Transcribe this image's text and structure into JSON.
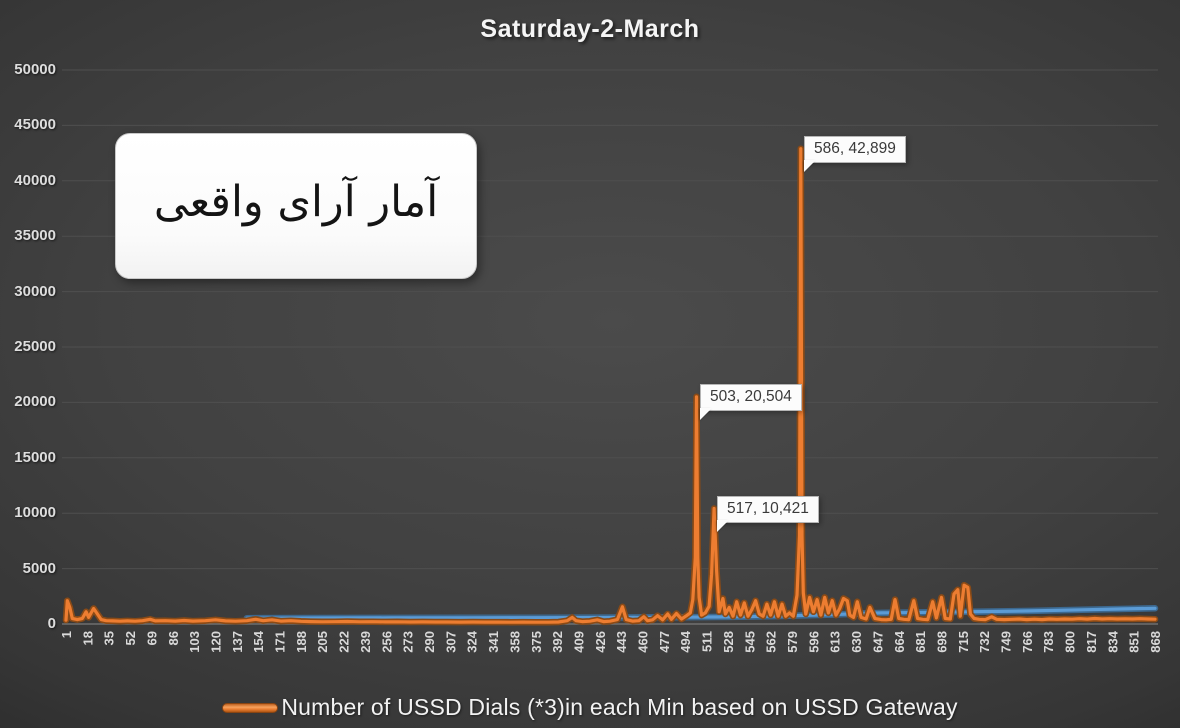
{
  "title": "Saturday-2-March",
  "annotation": {
    "text": "آمار آرای واقعی"
  },
  "legend": {
    "label": "Number of USSD Dials  (*3)in each Min based on USSD Gateway"
  },
  "colors": {
    "background": "#3f3f3f",
    "grid": "#4f4f4f",
    "axis": "#7a7a7a",
    "tick_label": "#d9d9d9",
    "series_orange": "#ED7D31",
    "series_blue": "#5B9BD5",
    "callout_bg": "#fcfcfc"
  },
  "chart_data": {
    "type": "line",
    "title": "Saturday-2-March",
    "xlabel": "",
    "ylabel": "",
    "x_range": [
      1,
      868
    ],
    "ylim": [
      0,
      50000
    ],
    "grid": true,
    "legend_position": "bottom",
    "y_ticks": [
      0,
      5000,
      10000,
      15000,
      20000,
      25000,
      30000,
      35000,
      40000,
      45000,
      50000
    ],
    "x_tick_labels": [
      1,
      18,
      35,
      52,
      69,
      86,
      103,
      120,
      137,
      154,
      171,
      188,
      205,
      222,
      239,
      256,
      273,
      290,
      307,
      324,
      341,
      358,
      375,
      392,
      409,
      426,
      443,
      460,
      477,
      494,
      511,
      528,
      545,
      562,
      579,
      596,
      613,
      630,
      647,
      664,
      681,
      698,
      715,
      732,
      749,
      766,
      783,
      800,
      817,
      834,
      851,
      868
    ],
    "series": [
      {
        "id": "blue-baseline",
        "name": "",
        "color": "#5B9BD5",
        "halo": "#3c688f",
        "points": [
          [
            145,
            520
          ],
          [
            200,
            540
          ],
          [
            260,
            550
          ],
          [
            320,
            560
          ],
          [
            380,
            570
          ],
          [
            440,
            590
          ],
          [
            490,
            610
          ],
          [
            530,
            640
          ],
          [
            570,
            720
          ],
          [
            610,
            850
          ],
          [
            650,
            1000
          ],
          [
            690,
            1060
          ],
          [
            730,
            1120
          ],
          [
            770,
            1180
          ],
          [
            810,
            1280
          ],
          [
            840,
            1350
          ],
          [
            868,
            1420
          ]
        ]
      },
      {
        "id": "ussd-dials",
        "name": "Number of USSD Dials  (*3)in each Min based on USSD Gateway",
        "color": "#ED7D31",
        "halo": "#8a4a16",
        "points": [
          [
            1,
            350
          ],
          [
            2,
            2100
          ],
          [
            4,
            1500
          ],
          [
            6,
            500
          ],
          [
            10,
            400
          ],
          [
            14,
            500
          ],
          [
            17,
            1100
          ],
          [
            19,
            600
          ],
          [
            23,
            1400
          ],
          [
            26,
            900
          ],
          [
            29,
            400
          ],
          [
            33,
            300
          ],
          [
            38,
            280
          ],
          [
            44,
            250
          ],
          [
            50,
            280
          ],
          [
            56,
            250
          ],
          [
            62,
            300
          ],
          [
            68,
            420
          ],
          [
            72,
            280
          ],
          [
            80,
            300
          ],
          [
            88,
            260
          ],
          [
            95,
            320
          ],
          [
            102,
            260
          ],
          [
            112,
            300
          ],
          [
            120,
            380
          ],
          [
            128,
            280
          ],
          [
            136,
            250
          ],
          [
            145,
            300
          ],
          [
            152,
            420
          ],
          [
            158,
            300
          ],
          [
            165,
            380
          ],
          [
            172,
            260
          ],
          [
            180,
            300
          ],
          [
            188,
            240
          ],
          [
            196,
            220
          ],
          [
            205,
            200
          ],
          [
            215,
            210
          ],
          [
            225,
            230
          ],
          [
            235,
            200
          ],
          [
            245,
            210
          ],
          [
            255,
            190
          ],
          [
            265,
            200
          ],
          [
            275,
            185
          ],
          [
            285,
            190
          ],
          [
            295,
            180
          ],
          [
            305,
            185
          ],
          [
            315,
            175
          ],
          [
            325,
            180
          ],
          [
            335,
            170
          ],
          [
            345,
            175
          ],
          [
            355,
            165
          ],
          [
            365,
            170
          ],
          [
            375,
            160
          ],
          [
            385,
            165
          ],
          [
            393,
            180
          ],
          [
            400,
            300
          ],
          [
            404,
            600
          ],
          [
            407,
            300
          ],
          [
            412,
            220
          ],
          [
            418,
            250
          ],
          [
            424,
            380
          ],
          [
            429,
            220
          ],
          [
            434,
            250
          ],
          [
            440,
            400
          ],
          [
            444,
            1550
          ],
          [
            447,
            400
          ],
          [
            452,
            260
          ],
          [
            457,
            300
          ],
          [
            461,
            650
          ],
          [
            464,
            300
          ],
          [
            468,
            380
          ],
          [
            472,
            750
          ],
          [
            476,
            380
          ],
          [
            480,
            900
          ],
          [
            483,
            420
          ],
          [
            487,
            950
          ],
          [
            491,
            450
          ],
          [
            495,
            750
          ],
          [
            498,
            1000
          ],
          [
            500,
            2200
          ],
          [
            502,
            6000
          ],
          [
            503,
            20504
          ],
          [
            504,
            6000
          ],
          [
            505,
            2400
          ],
          [
            507,
            800
          ],
          [
            510,
            1000
          ],
          [
            513,
            1600
          ],
          [
            515,
            4500
          ],
          [
            517,
            10421
          ],
          [
            519,
            4800
          ],
          [
            521,
            1100
          ],
          [
            524,
            2300
          ],
          [
            526,
            900
          ],
          [
            529,
            1500
          ],
          [
            532,
            700
          ],
          [
            535,
            2000
          ],
          [
            538,
            800
          ],
          [
            541,
            1900
          ],
          [
            544,
            700
          ],
          [
            547,
            1300
          ],
          [
            550,
            2100
          ],
          [
            553,
            900
          ],
          [
            556,
            700
          ],
          [
            559,
            1800
          ],
          [
            562,
            800
          ],
          [
            565,
            2000
          ],
          [
            568,
            700
          ],
          [
            571,
            1800
          ],
          [
            574,
            700
          ],
          [
            577,
            1000
          ],
          [
            580,
            700
          ],
          [
            583,
            2600
          ],
          [
            585,
            8000
          ],
          [
            586,
            42899
          ],
          [
            587,
            8000
          ],
          [
            588,
            2800
          ],
          [
            590,
            900
          ],
          [
            593,
            2400
          ],
          [
            596,
            1100
          ],
          [
            599,
            2200
          ],
          [
            602,
            800
          ],
          [
            605,
            2400
          ],
          [
            608,
            1000
          ],
          [
            611,
            2100
          ],
          [
            614,
            800
          ],
          [
            617,
            1400
          ],
          [
            620,
            2300
          ],
          [
            623,
            2100
          ],
          [
            625,
            800
          ],
          [
            628,
            600
          ],
          [
            631,
            2000
          ],
          [
            634,
            600
          ],
          [
            638,
            450
          ],
          [
            641,
            1500
          ],
          [
            645,
            500
          ],
          [
            650,
            400
          ],
          [
            654,
            380
          ],
          [
            658,
            420
          ],
          [
            661,
            2200
          ],
          [
            664,
            500
          ],
          [
            668,
            420
          ],
          [
            672,
            400
          ],
          [
            676,
            2100
          ],
          [
            679,
            500
          ],
          [
            683,
            420
          ],
          [
            687,
            400
          ],
          [
            691,
            2000
          ],
          [
            694,
            550
          ],
          [
            698,
            2400
          ],
          [
            701,
            500
          ],
          [
            705,
            450
          ],
          [
            708,
            2700
          ],
          [
            711,
            3100
          ],
          [
            713,
            700
          ],
          [
            716,
            3500
          ],
          [
            719,
            3300
          ],
          [
            721,
            900
          ],
          [
            724,
            500
          ],
          [
            728,
            420
          ],
          [
            733,
            400
          ],
          [
            738,
            650
          ],
          [
            742,
            420
          ],
          [
            748,
            400
          ],
          [
            754,
            420
          ],
          [
            760,
            450
          ],
          [
            766,
            400
          ],
          [
            772,
            430
          ],
          [
            778,
            400
          ],
          [
            784,
            450
          ],
          [
            790,
            420
          ],
          [
            796,
            450
          ],
          [
            802,
            430
          ],
          [
            808,
            480
          ],
          [
            814,
            440
          ],
          [
            820,
            500
          ],
          [
            826,
            450
          ],
          [
            832,
            480
          ],
          [
            838,
            450
          ],
          [
            844,
            470
          ],
          [
            850,
            450
          ],
          [
            856,
            480
          ],
          [
            862,
            450
          ],
          [
            868,
            430
          ]
        ]
      }
    ],
    "data_labels": [
      {
        "x": 503,
        "y": 20504,
        "text": "503, 20,504"
      },
      {
        "x": 517,
        "y": 10421,
        "text": "517, 10,421"
      },
      {
        "x": 586,
        "y": 42899,
        "text": "586, 42,899"
      }
    ]
  }
}
